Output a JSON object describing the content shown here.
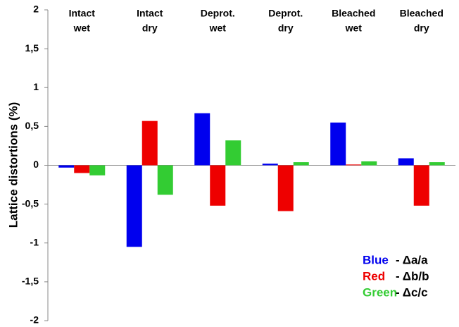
{
  "chart_data": {
    "type": "bar",
    "y_label": "Lattice distortions (%)",
    "categories": [
      [
        "Intact",
        "wet"
      ],
      [
        "Intact",
        "dry"
      ],
      [
        "Deprot.",
        "wet"
      ],
      [
        "Deprot.",
        "dry"
      ],
      [
        "Bleached",
        "wet"
      ],
      [
        "Bleached",
        "dry"
      ]
    ],
    "series": [
      {
        "name": "Blue",
        "label": "- Δa/a",
        "color": "#0000ee",
        "values": [
          -0.03,
          -1.05,
          0.67,
          0.02,
          0.55,
          0.09
        ]
      },
      {
        "name": "Red",
        "label": "- Δb/b",
        "color": "#ee0000",
        "values": [
          -0.1,
          0.57,
          -0.52,
          -0.59,
          0.01,
          -0.52
        ]
      },
      {
        "name": "Green",
        "label": "- Δc/c",
        "color": "#33cc33",
        "values": [
          -0.13,
          -0.38,
          0.32,
          0.04,
          0.05,
          0.04
        ]
      }
    ],
    "ylim": [
      -2,
      2
    ],
    "yticks": [
      -2,
      {
        "value": -1.5,
        "label": "-1,5"
      },
      -1,
      {
        "value": -0.5,
        "label": "-0,5"
      },
      0,
      {
        "value": 0.5,
        "label": "0,5"
      },
      1,
      {
        "value": 1.5,
        "label": "1,5"
      },
      2
    ],
    "grid": false
  }
}
